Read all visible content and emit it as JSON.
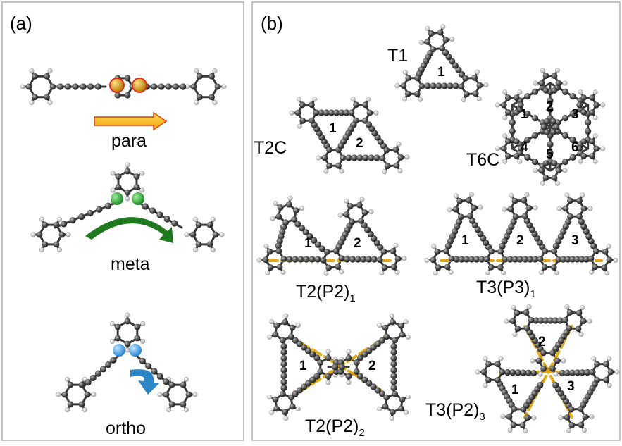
{
  "panel_a": {
    "label": "(a)",
    "captions": {
      "para": "para",
      "meta": "meta",
      "ortho": "ortho"
    }
  },
  "panel_b": {
    "label": "(b)",
    "T1": {
      "name": "T1",
      "rings": [
        "1"
      ]
    },
    "T2C": {
      "name": "T2C",
      "rings": [
        "1",
        "2"
      ]
    },
    "T6C": {
      "name": "T6C",
      "rings": [
        "1",
        "2",
        "3",
        "4",
        "5",
        "6"
      ]
    },
    "T2P2_1": {
      "name": "T2(P2)",
      "sub": "1",
      "rings": [
        "1",
        "2"
      ]
    },
    "T3P3_1": {
      "name": "T3(P3)",
      "sub": "1",
      "rings": [
        "1",
        "2",
        "3"
      ]
    },
    "T2P2_2": {
      "name": "T2(P2)",
      "sub": "2",
      "rings": [
        "1",
        "2"
      ]
    },
    "T3P2_3": {
      "name": "T3(P2)",
      "sub": "3",
      "rings": [
        "1",
        "2",
        "3"
      ]
    }
  },
  "colors": {
    "para_atoms": "#d4a017",
    "meta_atoms": "#2e9e3a",
    "ortho_atoms": "#3aa0e6",
    "path_line": "#e0a000",
    "para_arrow": "#f5a000",
    "meta_arrow": "#1f7a1f",
    "ortho_arrow": "#2f86c7"
  }
}
